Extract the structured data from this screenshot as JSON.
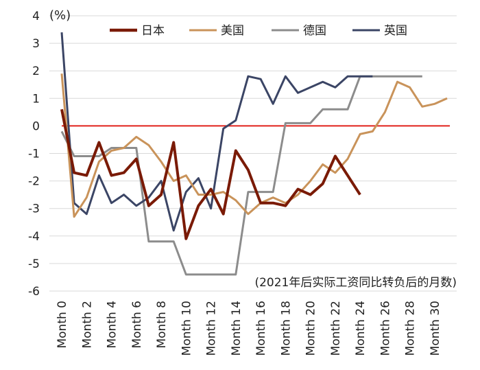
{
  "chart_data": {
    "type": "line",
    "unit_label": "(%)",
    "note": "(2021年后实际工资同比转负后的月数)",
    "ylim": [
      -6,
      4
    ],
    "yticks": [
      4,
      3,
      2,
      1,
      0,
      -1,
      -2,
      -3,
      -4,
      -5,
      -6
    ],
    "x_tick_labels": [
      "Month 0",
      "Month 2",
      "Month 4",
      "Month 6",
      "Month 8",
      "Month 10",
      "Month 12",
      "Month 14",
      "Month 16",
      "Month 18",
      "Month 20",
      "Month 22",
      "Month 24",
      "Month 26",
      "Month 28",
      "Month 30"
    ],
    "grid": true,
    "zero_line_color": "#e0201a",
    "legend_position": "top",
    "series": [
      {
        "name": "日本",
        "color": "#7a1a05",
        "values": [
          0.6,
          -1.7,
          -1.8,
          -0.6,
          -1.8,
          -1.7,
          -1.2,
          -2.9,
          -2.5,
          -0.6,
          -4.1,
          -2.9,
          -2.3,
          -3.2,
          -0.9,
          -1.6,
          -2.8,
          -2.8,
          -2.9,
          -2.3,
          -2.5,
          -2.1,
          -1.1,
          -1.8,
          -2.5
        ]
      },
      {
        "name": "美国",
        "color": "#c9935a",
        "values": [
          1.9,
          -3.3,
          -2.6,
          -1.3,
          -0.9,
          -0.8,
          -0.4,
          -0.7,
          -1.3,
          -2.0,
          -1.8,
          -2.5,
          -2.5,
          -2.4,
          -2.7,
          -3.2,
          -2.8,
          -2.6,
          -2.8,
          -2.5,
          -2.0,
          -1.4,
          -1.7,
          -1.2,
          -0.3,
          -0.2,
          0.5,
          1.6,
          1.4,
          0.7,
          0.8,
          1.0
        ]
      },
      {
        "name": "德国",
        "color": "#8c8c8c",
        "values": [
          -0.2,
          -1.1,
          -1.1,
          -1.1,
          -0.8,
          -0.8,
          -0.8,
          -4.2,
          -4.2,
          -4.2,
          -5.4,
          -5.4,
          -5.4,
          -5.4,
          -5.4,
          -2.4,
          -2.4,
          -2.4,
          0.1,
          0.1,
          0.1,
          0.6,
          0.6,
          0.6,
          1.8,
          1.8,
          1.8,
          1.8,
          1.8,
          1.8
        ]
      },
      {
        "name": "英国",
        "color": "#3b4565",
        "values": [
          3.4,
          -2.8,
          -3.2,
          -1.8,
          -2.8,
          -2.5,
          -2.9,
          -2.6,
          -2.0,
          -3.8,
          -2.4,
          -1.9,
          -3.0,
          -0.1,
          0.2,
          1.8,
          1.7,
          0.8,
          1.8,
          1.2,
          1.4,
          1.6,
          1.4,
          1.8,
          1.8,
          1.8
        ]
      }
    ]
  }
}
